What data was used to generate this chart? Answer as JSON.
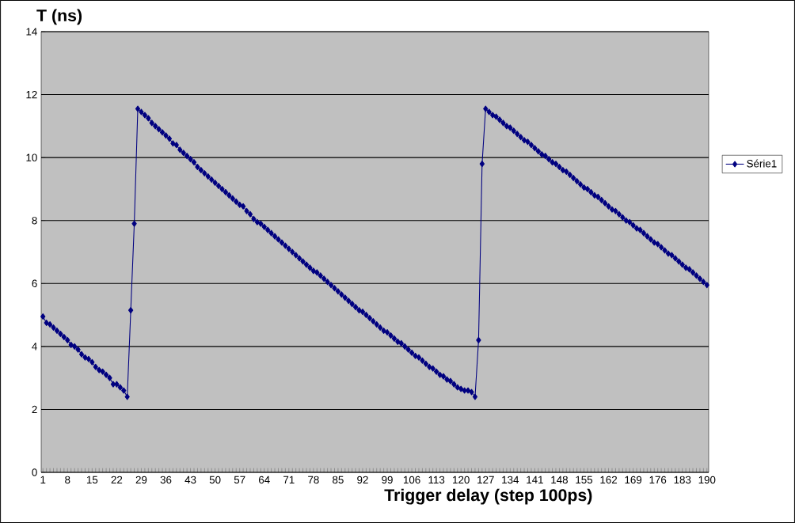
{
  "chart_data": {
    "type": "line",
    "xlabel": "Trigger delay (step 100ps)",
    "ylabel": "T (ns)",
    "categories": [
      "1",
      null,
      null,
      null,
      null,
      null,
      null,
      "8",
      null,
      null,
      null,
      null,
      null,
      null,
      "15",
      null,
      null,
      null,
      null,
      null,
      null,
      "22",
      null,
      null,
      null,
      null,
      null,
      null,
      "29",
      null,
      null,
      null,
      null,
      null,
      null,
      "36",
      null,
      null,
      null,
      null,
      null,
      null,
      "43",
      null,
      null,
      null,
      null,
      null,
      null,
      "50",
      null,
      null,
      null,
      null,
      null,
      null,
      "57",
      null,
      null,
      null,
      null,
      null,
      null,
      "64",
      null,
      null,
      null,
      null,
      null,
      null,
      "71",
      null,
      null,
      null,
      null,
      null,
      null,
      "78",
      null,
      null,
      null,
      null,
      null,
      null,
      "85",
      null,
      null,
      null,
      null,
      null,
      null,
      "92",
      null,
      null,
      null,
      null,
      null,
      null,
      "99",
      null,
      null,
      null,
      null,
      null,
      null,
      "106",
      null,
      null,
      null,
      null,
      null,
      null,
      "113",
      null,
      null,
      null,
      null,
      null,
      null,
      "120",
      null,
      null,
      null,
      null,
      null,
      null,
      "127",
      null,
      null,
      null,
      null,
      null,
      null,
      "134",
      null,
      null,
      null,
      null,
      null,
      null,
      "141",
      null,
      null,
      null,
      null,
      null,
      null,
      "148",
      null,
      null,
      null,
      null,
      null,
      null,
      "155",
      null,
      null,
      null,
      null,
      null,
      null,
      "162",
      null,
      null,
      null,
      null,
      null,
      null,
      "169",
      null,
      null,
      null,
      null,
      null,
      null,
      "176",
      null,
      null,
      null,
      null,
      null,
      null,
      "183",
      null,
      null,
      null,
      null,
      null,
      null,
      "190"
    ],
    "series": [
      {
        "name": "Série1",
        "color": "#000080",
        "values": [
          4.95,
          4.75,
          4.7,
          4.6,
          4.5,
          4.4,
          4.3,
          4.2,
          4.05,
          4.0,
          3.9,
          3.75,
          3.65,
          3.6,
          3.5,
          3.35,
          3.25,
          3.2,
          3.1,
          3.0,
          2.8,
          2.8,
          2.7,
          2.6,
          2.4,
          5.15,
          7.9,
          11.55,
          11.45,
          11.35,
          11.25,
          11.1,
          11.0,
          10.9,
          10.8,
          10.7,
          10.6,
          10.45,
          10.4,
          10.25,
          10.15,
          10.05,
          9.95,
          9.85,
          9.7,
          9.6,
          9.5,
          9.4,
          9.3,
          9.2,
          9.1,
          9.0,
          8.9,
          8.8,
          8.7,
          8.6,
          8.5,
          8.45,
          8.3,
          8.2,
          8.05,
          7.95,
          7.9,
          7.8,
          7.7,
          7.6,
          7.5,
          7.4,
          7.3,
          7.2,
          7.1,
          7.0,
          6.9,
          6.8,
          6.7,
          6.6,
          6.5,
          6.4,
          6.35,
          6.25,
          6.15,
          6.05,
          5.95,
          5.85,
          5.75,
          5.65,
          5.55,
          5.45,
          5.35,
          5.25,
          5.15,
          5.1,
          5.0,
          4.9,
          4.8,
          4.7,
          4.6,
          4.5,
          4.45,
          4.35,
          4.25,
          4.15,
          4.1,
          4.0,
          3.9,
          3.8,
          3.7,
          3.65,
          3.55,
          3.45,
          3.35,
          3.3,
          3.2,
          3.1,
          3.05,
          2.95,
          2.9,
          2.8,
          2.7,
          2.65,
          2.6,
          2.6,
          2.55,
          2.4,
          4.2,
          9.8,
          11.55,
          11.45,
          11.35,
          11.3,
          11.2,
          11.1,
          11.0,
          10.95,
          10.85,
          10.75,
          10.65,
          10.55,
          10.5,
          10.4,
          10.3,
          10.2,
          10.1,
          10.05,
          9.95,
          9.85,
          9.8,
          9.7,
          9.6,
          9.55,
          9.45,
          9.35,
          9.25,
          9.15,
          9.05,
          9.0,
          8.9,
          8.8,
          8.75,
          8.65,
          8.55,
          8.45,
          8.35,
          8.3,
          8.2,
          8.1,
          8.0,
          7.95,
          7.85,
          7.75,
          7.7,
          7.6,
          7.5,
          7.4,
          7.3,
          7.25,
          7.15,
          7.05,
          6.95,
          6.9,
          6.8,
          6.7,
          6.6,
          6.5,
          6.45,
          6.35,
          6.25,
          6.15,
          6.05,
          5.95
        ]
      }
    ],
    "ylim": [
      0,
      14
    ],
    "yticks": [
      0,
      2,
      4,
      6,
      8,
      10,
      12,
      14
    ],
    "grid": "y",
    "legend": "right",
    "marker": "diamond",
    "line_style": "solid"
  }
}
